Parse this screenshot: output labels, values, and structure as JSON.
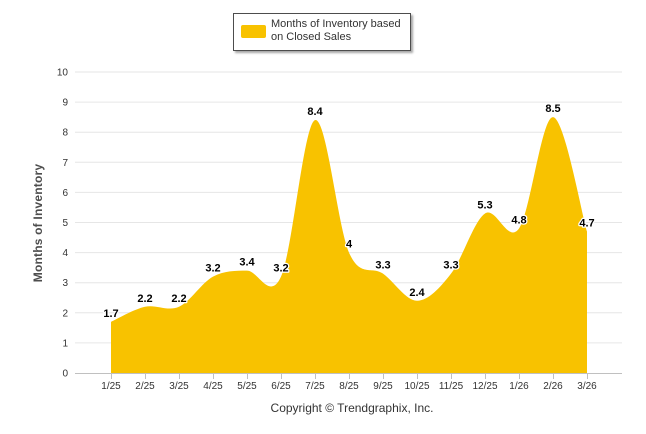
{
  "chart_data": {
    "type": "area",
    "categories": [
      "1/25",
      "2/25",
      "3/25",
      "4/25",
      "5/25",
      "6/25",
      "7/25",
      "8/25",
      "9/25",
      "10/25",
      "11/25",
      "12/25",
      "1/26",
      "2/26",
      "3/26"
    ],
    "series": [
      {
        "name": "Months of Inventory based on Closed Sales",
        "values": [
          1.7,
          2.2,
          2.2,
          3.2,
          3.4,
          3.2,
          8.4,
          4,
          3.3,
          2.4,
          3.3,
          5.3,
          4.8,
          8.5,
          4.7
        ],
        "data_labels": [
          "1.7",
          "2.2",
          "2.2",
          "3.2",
          "3.4",
          "3.2",
          "8.4",
          "4",
          "3.3",
          "2.4",
          "3.3",
          "5.3",
          "4.8",
          "8.5",
          "4.7"
        ]
      }
    ],
    "title": "",
    "xlabel": "",
    "ylabel": "Months of Inventory",
    "ylim": [
      0,
      10
    ],
    "yticks": [
      "0",
      "1",
      "2",
      "3",
      "4",
      "5",
      "6",
      "7",
      "8",
      "9",
      "10"
    ],
    "grid": true,
    "legend_position": "top-center"
  },
  "legend": {
    "label": "Months of Inventory based on Closed Sales"
  },
  "footer": {
    "copyright": "Copyright © Trendgraphix, Inc."
  },
  "colors": {
    "area_fill": "#F8C200",
    "grid": "#E6E6E6",
    "axis": "#C0C0C0",
    "tick_text": "#333333",
    "label_text": "#000000"
  }
}
